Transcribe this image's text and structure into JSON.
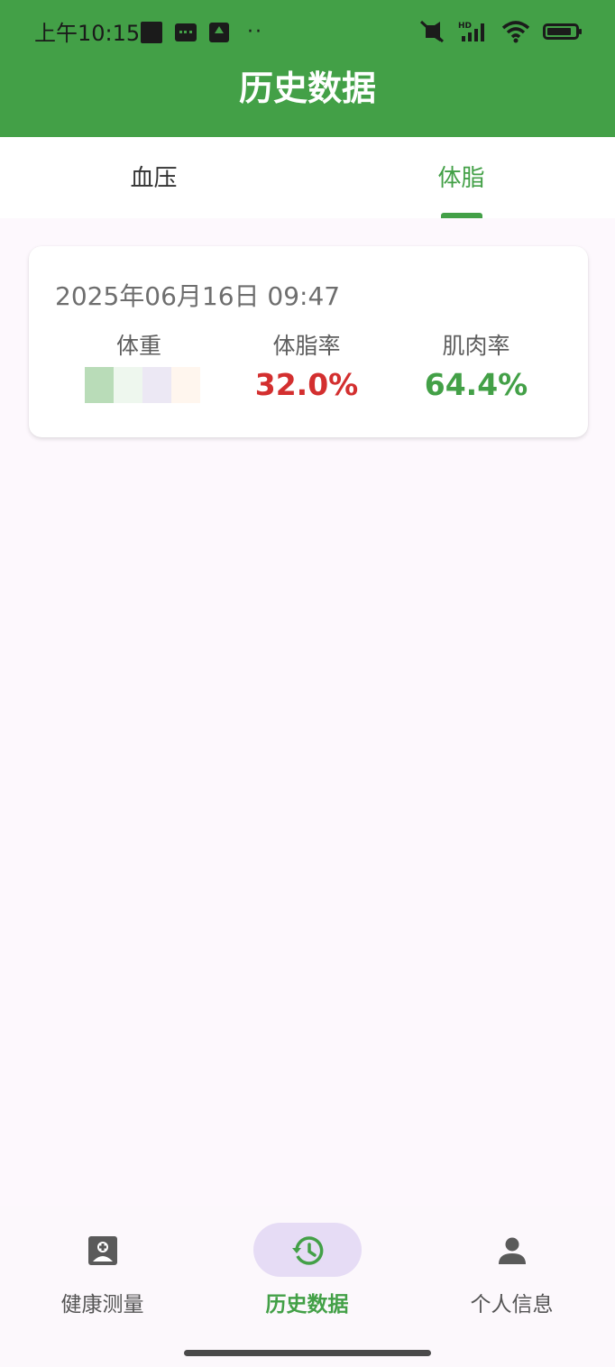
{
  "status_bar": {
    "time": "上午10:15",
    "icons_left": [
      "square-icon",
      "message-icon",
      "upload-icon",
      "more-dots-icon"
    ],
    "icons_right": [
      "mute-icon",
      "hd-signal-icon",
      "wifi-icon",
      "battery-icon"
    ]
  },
  "app_bar": {
    "title": "历史数据",
    "color": "#43a047"
  },
  "tabs": [
    {
      "label": "血压",
      "selected": false
    },
    {
      "label": "体脂",
      "selected": true
    }
  ],
  "record": {
    "date": "2025年06月16日 09:47",
    "metrics": [
      {
        "label": "体重",
        "value": "kg",
        "color": "#43a047"
      },
      {
        "label": "体脂率",
        "value": "32.0%",
        "color": "#d32f2f"
      },
      {
        "label": "肌肉率",
        "value": "64.4%",
        "color": "#43a047"
      }
    ]
  },
  "bottom_nav": {
    "items": [
      {
        "label": "健康测量",
        "icon": "account-box-icon",
        "selected": false
      },
      {
        "label": "历史数据",
        "icon": "history-icon",
        "selected": true
      },
      {
        "label": "个人信息",
        "icon": "person-icon",
        "selected": false
      }
    ],
    "selected_pill_color": "#e6dcf5"
  }
}
